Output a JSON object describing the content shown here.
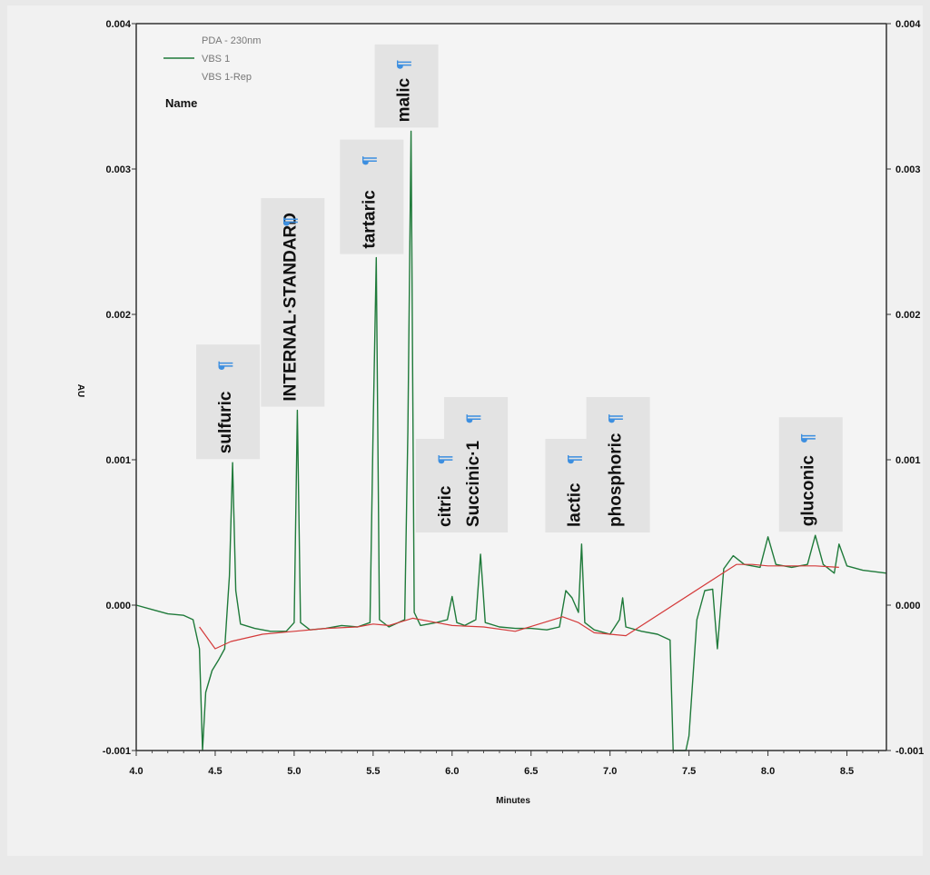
{
  "chart_data": {
    "type": "line",
    "title": "",
    "xlabel": "Minutes",
    "ylabel": "AU",
    "xlim": [
      4.0,
      8.75
    ],
    "ylim": [
      -0.001,
      0.004
    ],
    "x_ticks": [
      "4.0",
      "4.5",
      "5.0",
      "5.5",
      "6.0",
      "6.5",
      "7.0",
      "7.5",
      "8.0",
      "8.5"
    ],
    "y_ticks": [
      "-0.001",
      "0.000",
      "0.001",
      "0.002",
      "0.003",
      "0.004"
    ],
    "grid": false,
    "legend": {
      "placement": "top-left",
      "header": "PDA - 230nm",
      "entries": [
        "VBS 1",
        "VBS 1-Rep"
      ],
      "name_label": "Name"
    },
    "peaks": [
      {
        "name": "sulfuric",
        "x": 4.61,
        "y": 0.00098
      },
      {
        "name": "INTERNAL·STANDARD",
        "x": 5.02,
        "y": 0.00134
      },
      {
        "name": "tartaric",
        "x": 5.52,
        "y": 0.00239
      },
      {
        "name": "malic",
        "x": 5.74,
        "y": 0.00326
      },
      {
        "name": "citric",
        "x": 6.0,
        "y": 6e-05
      },
      {
        "name": "Succinic·1",
        "x": 6.18,
        "y": 0.00035
      },
      {
        "name": "lactic",
        "x": 6.82,
        "y": 0.00042
      },
      {
        "name": "phosphoric",
        "x": 7.08,
        "y": 5e-05
      },
      {
        "name": "gluconic",
        "x": 8.3,
        "y": 0.00048
      }
    ],
    "series": [
      {
        "color": "#1f7a3a",
        "x": [
          4.0,
          4.1,
          4.2,
          4.3,
          4.36,
          4.4,
          4.42,
          4.44,
          4.48,
          4.52,
          4.56,
          4.59,
          4.61,
          4.63,
          4.66,
          4.75,
          4.85,
          4.95,
          5.0,
          5.02,
          5.04,
          5.1,
          5.2,
          5.3,
          5.4,
          5.48,
          5.5,
          5.52,
          5.54,
          5.6,
          5.7,
          5.72,
          5.74,
          5.76,
          5.8,
          5.9,
          5.97,
          6.0,
          6.03,
          6.08,
          6.15,
          6.18,
          6.21,
          6.3,
          6.4,
          6.5,
          6.6,
          6.68,
          6.72,
          6.76,
          6.8,
          6.82,
          6.84,
          6.9,
          7.0,
          7.06,
          7.08,
          7.1,
          7.2,
          7.3,
          7.38,
          7.4,
          7.42,
          7.48,
          7.5,
          7.55,
          7.6,
          7.65,
          7.68,
          7.72,
          7.78,
          7.85,
          7.95,
          8.0,
          8.05,
          8.15,
          8.25,
          8.3,
          8.35,
          8.42,
          8.45,
          8.5,
          8.6,
          8.75
        ],
        "y": [
          0.0,
          -3e-05,
          -6e-05,
          -7e-05,
          -0.0001,
          -0.0003,
          -0.001,
          -0.0006,
          -0.00045,
          -0.00038,
          -0.0003,
          0.0002,
          0.00098,
          0.0001,
          -0.00013,
          -0.00016,
          -0.00018,
          -0.00018,
          -0.00012,
          0.00134,
          -0.00012,
          -0.00017,
          -0.00016,
          -0.00014,
          -0.00015,
          -0.00012,
          0.0012,
          0.00239,
          -0.0001,
          -0.00015,
          -0.0001,
          0.0012,
          0.00326,
          -5e-05,
          -0.00014,
          -0.00012,
          -0.0001,
          6e-05,
          -0.00012,
          -0.00014,
          -0.0001,
          0.00035,
          -0.00012,
          -0.00015,
          -0.00016,
          -0.00016,
          -0.00017,
          -0.00015,
          0.0001,
          5e-05,
          -5e-05,
          0.00042,
          -0.00012,
          -0.00017,
          -0.0002,
          -0.0001,
          5e-05,
          -0.00015,
          -0.00018,
          -0.0002,
          -0.00024,
          -0.001,
          -0.001,
          -0.001,
          -0.0009,
          -0.0001,
          0.0001,
          0.00011,
          -0.0003,
          0.00025,
          0.00034,
          0.00028,
          0.00026,
          0.00047,
          0.00028,
          0.00026,
          0.00028,
          0.00048,
          0.00028,
          0.00022,
          0.00042,
          0.00027,
          0.00024,
          0.00022
        ]
      },
      {
        "color": "#d43a3a",
        "x": [
          4.4,
          4.5,
          4.6,
          4.8,
          5.0,
          5.2,
          5.4,
          5.5,
          5.6,
          5.75,
          5.9,
          6.0,
          6.2,
          6.4,
          6.7,
          6.8,
          6.9,
          7.1,
          7.7,
          7.8,
          7.9,
          8.0,
          8.3,
          8.45
        ],
        "y": [
          -0.00015,
          -0.0003,
          -0.00025,
          -0.0002,
          -0.00018,
          -0.00016,
          -0.00015,
          -0.00013,
          -0.00014,
          -9e-05,
          -0.00012,
          -0.00014,
          -0.00015,
          -0.00018,
          -8e-05,
          -0.00012,
          -0.00019,
          -0.00021,
          0.00021,
          0.00028,
          0.00028,
          0.00027,
          0.00027,
          0.00026
        ]
      }
    ]
  }
}
